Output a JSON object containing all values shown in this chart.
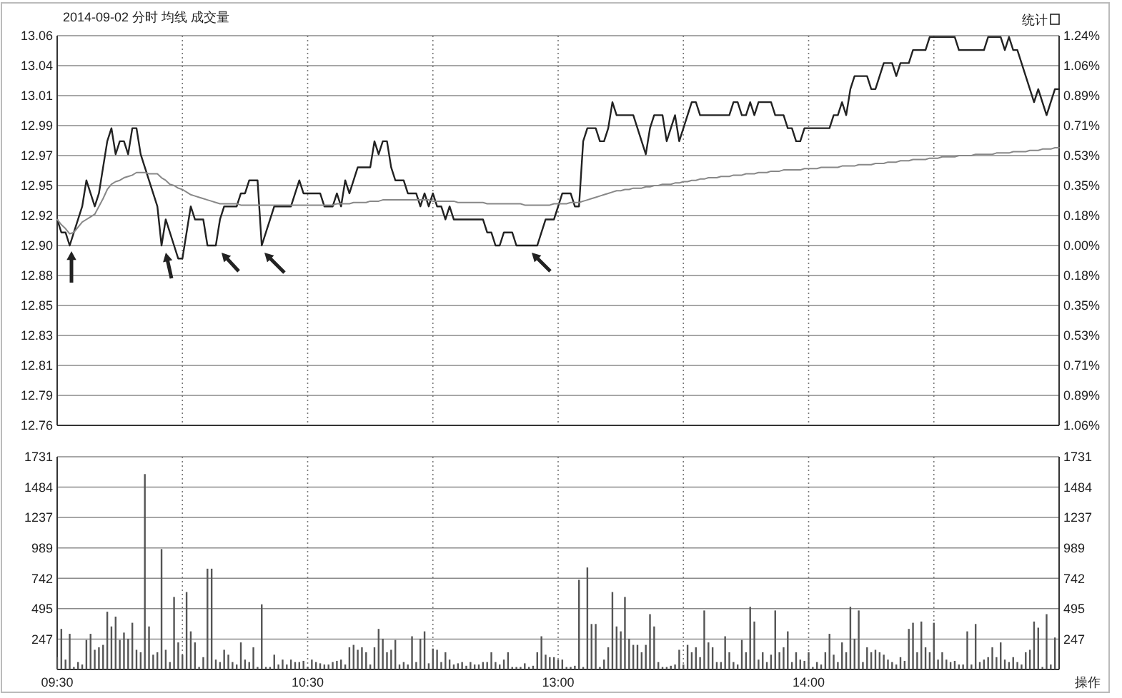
{
  "chart_data": [
    {
      "type": "line",
      "title": "2014-09-02 分时 均线 成交量",
      "annotations": [
        "统计"
      ],
      "categories": [
        null,
        null,
        null,
        null,
        null,
        null,
        null,
        null,
        null,
        null,
        null,
        null,
        null,
        null,
        null,
        null,
        null,
        null,
        null,
        null,
        null,
        null,
        null,
        null,
        null,
        null,
        null,
        null,
        null,
        null,
        null,
        null,
        null,
        null,
        null,
        null,
        null,
        null,
        null,
        null,
        null,
        null,
        null,
        null,
        null,
        null,
        null,
        null,
        null,
        null,
        null,
        null,
        null,
        null,
        null,
        null,
        null,
        null,
        null,
        null,
        null,
        null,
        null,
        null,
        null,
        null,
        null,
        null,
        null,
        null,
        null,
        null,
        null,
        null,
        null,
        null,
        null,
        null,
        null,
        null,
        null,
        null,
        null,
        null,
        null,
        null,
        null,
        null,
        null,
        null,
        null,
        null,
        null,
        null,
        null,
        null,
        null,
        null,
        null,
        null,
        null,
        null,
        null,
        null,
        null,
        null,
        null,
        null,
        null,
        null,
        null,
        null,
        null,
        null,
        null,
        null,
        null,
        null,
        null,
        null,
        null,
        null,
        null,
        null,
        null,
        null,
        null,
        null,
        null,
        null,
        null,
        null,
        null,
        null,
        null,
        null,
        null,
        null,
        null,
        null,
        null,
        null,
        null,
        null,
        null,
        null,
        null,
        null,
        null,
        null,
        null,
        null,
        null,
        null,
        null,
        null,
        null,
        null,
        null,
        null,
        null,
        null,
        null,
        null,
        null,
        null,
        null,
        null,
        null,
        null,
        null,
        null,
        null,
        null,
        null,
        null,
        null,
        null,
        null,
        null,
        null,
        null,
        null,
        null,
        null,
        null,
        null,
        null,
        null,
        null,
        null,
        null,
        null,
        null,
        null,
        null,
        null,
        null,
        null,
        null,
        null,
        null,
        null,
        null,
        null,
        null,
        null,
        null,
        null,
        null,
        null,
        null,
        null,
        null,
        null,
        null,
        null,
        null,
        null,
        null,
        null,
        null,
        null,
        null,
        null,
        null,
        null,
        null,
        null,
        null,
        null,
        null,
        null,
        null,
        null,
        null,
        null,
        null,
        null,
        null,
        null
      ],
      "ylim": [
        12.762,
        13.061
      ],
      "yticks": [
        {
          "value": 13.061,
          "label": "13.06"
        },
        {
          "value": 13.038,
          "label": "13.04"
        },
        {
          "value": 13.015,
          "label": "13.01"
        },
        {
          "value": 12.992,
          "label": "12.99"
        },
        {
          "value": 12.969,
          "label": "12.97"
        },
        {
          "value": 12.946,
          "label": "12.95"
        },
        {
          "value": 12.923,
          "label": "12.92"
        },
        {
          "value": 12.9,
          "label": "12.90"
        },
        {
          "value": 12.877,
          "label": "12.88"
        },
        {
          "value": 12.854,
          "label": "12.85"
        },
        {
          "value": 12.831,
          "label": "12.83"
        },
        {
          "value": 12.808,
          "label": "12.81"
        },
        {
          "value": 12.785,
          "label": "12.79"
        },
        {
          "value": 12.762,
          "label": "12.76"
        }
      ],
      "y2lim": [
        -1.062,
        1.239
      ],
      "y2ticks": [
        {
          "value": 1.239,
          "label": "1.24%"
        },
        {
          "value": 1.062,
          "label": "1.06%"
        },
        {
          "value": 0.885,
          "label": "0.89%"
        },
        {
          "value": 0.708,
          "label": "0.71%"
        },
        {
          "value": 0.531,
          "label": "0.53%"
        },
        {
          "value": 0.354,
          "label": "0.35%"
        },
        {
          "value": 0.177,
          "label": "0.18%"
        },
        {
          "value": 0,
          "label": "0.00%"
        },
        {
          "value": -0.177,
          "label": "0.18%"
        },
        {
          "value": -0.354,
          "label": "0.35%"
        },
        {
          "value": -0.531,
          "label": "0.53%"
        },
        {
          "value": -0.708,
          "label": "0.71%"
        },
        {
          "value": -0.885,
          "label": "0.89%"
        },
        {
          "value": -1.062,
          "label": "1.06%"
        }
      ],
      "grid": true,
      "series": [
        {
          "color": "#222222",
          "values": [
            12.92,
            12.91,
            12.91,
            12.9,
            12.91,
            12.92,
            12.93,
            12.95,
            12.94,
            12.93,
            12.94,
            12.96,
            12.98,
            12.99,
            12.97,
            12.98,
            12.98,
            12.97,
            12.99,
            12.99,
            12.97,
            12.96,
            12.95,
            12.94,
            12.93,
            12.9,
            12.92,
            12.91,
            12.9,
            12.89,
            12.89,
            12.91,
            12.93,
            12.92,
            12.92,
            12.92,
            12.9,
            12.9,
            12.9,
            12.92,
            12.93,
            12.93,
            12.93,
            12.93,
            12.94,
            12.94,
            12.95,
            12.95,
            12.95,
            12.9,
            12.91,
            12.92,
            12.93,
            12.93,
            12.93,
            12.93,
            12.93,
            12.94,
            12.95,
            12.94,
            12.94,
            12.94,
            12.94,
            12.94,
            12.93,
            12.93,
            12.93,
            12.94,
            12.93,
            12.95,
            12.94,
            12.95,
            12.96,
            12.96,
            12.96,
            12.96,
            12.98,
            12.97,
            12.98,
            12.98,
            12.96,
            12.95,
            12.95,
            12.95,
            12.94,
            12.94,
            12.94,
            12.93,
            12.94,
            12.93,
            12.94,
            12.93,
            12.93,
            12.92,
            12.93,
            12.92,
            12.92,
            12.92,
            12.92,
            12.92,
            12.92,
            12.92,
            12.92,
            12.91,
            12.91,
            12.9,
            12.9,
            12.91,
            12.91,
            12.91,
            12.9,
            12.9,
            12.9,
            12.9,
            12.9,
            12.9,
            12.91,
            12.92,
            12.92,
            12.92,
            12.93,
            12.94,
            12.94,
            12.94,
            12.93,
            12.93,
            12.98,
            12.99,
            12.99,
            12.99,
            12.98,
            12.98,
            12.99,
            13.01,
            13.0,
            13.0,
            13.0,
            13.0,
            13.0,
            12.99,
            12.98,
            12.97,
            12.99,
            13.0,
            13.0,
            13.0,
            12.98,
            12.99,
            13.0,
            12.98,
            12.99,
            13.0,
            13.01,
            13.01,
            13.0,
            13.0,
            13.0,
            13.0,
            13.0,
            13.0,
            13.0,
            13.0,
            13.01,
            13.01,
            13.0,
            13.0,
            13.01,
            13.0,
            13.01,
            13.01,
            13.01,
            13.01,
            13.0,
            13.0,
            13.0,
            12.99,
            12.99,
            12.98,
            12.98,
            12.99,
            12.99,
            12.99,
            12.99,
            12.99,
            12.99,
            12.99,
            13.0,
            13.0,
            13.01,
            13.0,
            13.02,
            13.03,
            13.03,
            13.03,
            13.03,
            13.02,
            13.02,
            13.03,
            13.04,
            13.04,
            13.04,
            13.03,
            13.04,
            13.04,
            13.04,
            13.05,
            13.05,
            13.05,
            13.05,
            13.06,
            13.06,
            13.06,
            13.06,
            13.06,
            13.06,
            13.06,
            13.05,
            13.05,
            13.05,
            13.05,
            13.05,
            13.05,
            13.05,
            13.06,
            13.06,
            13.06,
            13.06,
            13.05,
            13.06,
            13.05,
            13.05,
            13.04,
            13.03,
            13.02,
            13.01,
            13.02,
            13.01,
            13.0,
            13.01,
            13.02,
            13.02
          ]
        },
        {
          "color": "#888888",
          "values": [
            12.92,
            12.916,
            12.913,
            12.909,
            12.91,
            12.914,
            12.918,
            12.92,
            12.922,
            12.924,
            12.93,
            12.936,
            12.943,
            12.947,
            12.949,
            12.95,
            12.952,
            12.953,
            12.954,
            12.956,
            12.956,
            12.956,
            12.955,
            12.955,
            12.955,
            12.952,
            12.95,
            12.947,
            12.946,
            12.944,
            12.943,
            12.941,
            12.939,
            12.938,
            12.937,
            12.936,
            12.935,
            12.934,
            12.933,
            12.932,
            12.932,
            12.932,
            12.932,
            12.932,
            12.931,
            12.931,
            12.931,
            12.931,
            12.931,
            12.931,
            12.931,
            12.931,
            12.931,
            12.931,
            12.931,
            12.931,
            12.931,
            12.931,
            12.931,
            12.931,
            12.931,
            12.931,
            12.931,
            12.931,
            12.931,
            12.931,
            12.931,
            12.932,
            12.932,
            12.932,
            12.932,
            12.933,
            12.933,
            12.933,
            12.933,
            12.934,
            12.934,
            12.934,
            12.935,
            12.935,
            12.935,
            12.935,
            12.935,
            12.935,
            12.935,
            12.935,
            12.935,
            12.935,
            12.935,
            12.935,
            12.934,
            12.934,
            12.934,
            12.934,
            12.934,
            12.934,
            12.933,
            12.933,
            12.933,
            12.933,
            12.933,
            12.933,
            12.933,
            12.932,
            12.932,
            12.932,
            12.932,
            12.932,
            12.932,
            12.932,
            12.932,
            12.932,
            12.931,
            12.931,
            12.931,
            12.931,
            12.931,
            12.931,
            12.931,
            12.932,
            12.932,
            12.932,
            12.932,
            12.933,
            12.933,
            12.933,
            12.934,
            12.935,
            12.936,
            12.937,
            12.938,
            12.939,
            12.94,
            12.941,
            12.942,
            12.942,
            12.943,
            12.943,
            12.944,
            12.944,
            12.944,
            12.945,
            12.945,
            12.946,
            12.946,
            12.947,
            12.947,
            12.947,
            12.948,
            12.948,
            12.949,
            12.949,
            12.95,
            12.95,
            12.951,
            12.951,
            12.952,
            12.952,
            12.952,
            12.953,
            12.953,
            12.953,
            12.954,
            12.954,
            12.954,
            12.955,
            12.955,
            12.955,
            12.956,
            12.956,
            12.956,
            12.957,
            12.957,
            12.957,
            12.958,
            12.958,
            12.958,
            12.958,
            12.958,
            12.959,
            12.959,
            12.959,
            12.959,
            12.96,
            12.96,
            12.96,
            12.96,
            12.96,
            12.961,
            12.961,
            12.961,
            12.961,
            12.962,
            12.962,
            12.962,
            12.962,
            12.963,
            12.963,
            12.963,
            12.964,
            12.964,
            12.964,
            12.965,
            12.965,
            12.965,
            12.966,
            12.966,
            12.966,
            12.966,
            12.967,
            12.967,
            12.967,
            12.968,
            12.968,
            12.968,
            12.968,
            12.969,
            12.969,
            12.969,
            12.969,
            12.97,
            12.97,
            12.97,
            12.97,
            12.97,
            12.971,
            12.971,
            12.971,
            12.971,
            12.972,
            12.972,
            12.972,
            12.972,
            12.973,
            12.973,
            12.973,
            12.974,
            12.974,
            12.974,
            12.975,
            12.975
          ]
        }
      ]
    },
    {
      "type": "bar",
      "annotations": [
        "操作"
      ],
      "color": "#555555",
      "categories": [
        "09:30",
        null,
        null,
        null,
        null,
        null,
        null,
        null,
        null,
        null,
        null,
        null,
        null,
        null,
        null,
        null,
        null,
        null,
        null,
        null,
        null,
        null,
        null,
        null,
        null,
        null,
        null,
        null,
        null,
        null,
        null,
        null,
        null,
        null,
        null,
        null,
        null,
        null,
        null,
        null,
        null,
        null,
        null,
        null,
        null,
        null,
        null,
        null,
        null,
        null,
        null,
        null,
        null,
        null,
        null,
        null,
        null,
        null,
        null,
        null,
        "10:30",
        null,
        null,
        null,
        null,
        null,
        null,
        null,
        null,
        null,
        null,
        null,
        null,
        null,
        null,
        null,
        null,
        null,
        null,
        null,
        null,
        null,
        null,
        null,
        null,
        null,
        null,
        null,
        null,
        null,
        null,
        null,
        null,
        null,
        null,
        null,
        null,
        null,
        null,
        null,
        null,
        null,
        null,
        null,
        null,
        null,
        null,
        null,
        null,
        null,
        null,
        null,
        null,
        null,
        null,
        null,
        null,
        null,
        null,
        null,
        "13:00",
        null,
        null,
        null,
        null,
        null,
        null,
        null,
        null,
        null,
        null,
        null,
        null,
        null,
        null,
        null,
        null,
        null,
        null,
        null,
        null,
        null,
        null,
        null,
        null,
        null,
        null,
        null,
        null,
        null,
        null,
        null,
        null,
        null,
        null,
        null,
        null,
        null,
        null,
        null,
        null,
        null,
        null,
        null,
        null,
        null,
        null,
        null,
        null,
        null,
        null,
        null,
        null,
        null,
        null,
        null,
        null,
        null,
        null,
        null,
        "14:00",
        null,
        null,
        null,
        null,
        null,
        null,
        null,
        null,
        null,
        null,
        null,
        null,
        null,
        null,
        null,
        null,
        null,
        null,
        null,
        null,
        null,
        null,
        null,
        null,
        null,
        null,
        null,
        null,
        null,
        null,
        null,
        null,
        null,
        null,
        null,
        null,
        null,
        null,
        null,
        null,
        null,
        null,
        null,
        null,
        null,
        null,
        null,
        null,
        null,
        null,
        null,
        null,
        null,
        null,
        null,
        null,
        null,
        null,
        null
      ],
      "ylim": [
        0,
        1731
      ],
      "yticks": [
        247,
        495,
        742,
        989,
        1237,
        1484,
        1731
      ],
      "y2lim": [
        0,
        1731
      ],
      "y2ticks": [
        247,
        495,
        742,
        989,
        1237,
        1484,
        1731
      ],
      "grid": true,
      "values": [
        100,
        330,
        80,
        290,
        20,
        60,
        40,
        240,
        290,
        160,
        180,
        200,
        470,
        350,
        430,
        240,
        300,
        250,
        380,
        160,
        140,
        1590,
        350,
        120,
        140,
        980,
        160,
        60,
        590,
        220,
        120,
        630,
        310,
        220,
        20,
        100,
        820,
        820,
        80,
        60,
        160,
        120,
        60,
        40,
        220,
        80,
        60,
        180,
        20,
        530,
        20,
        20,
        120,
        40,
        80,
        40,
        80,
        60,
        60,
        70,
        20,
        80,
        60,
        50,
        40,
        40,
        60,
        70,
        80,
        40,
        180,
        200,
        160,
        180,
        140,
        40,
        180,
        330,
        250,
        140,
        160,
        240,
        40,
        60,
        40,
        270,
        60,
        250,
        310,
        50,
        170,
        160,
        60,
        140,
        80,
        40,
        50,
        60,
        30,
        60,
        40,
        40,
        60,
        60,
        140,
        60,
        40,
        80,
        140,
        20,
        20,
        20,
        50,
        20,
        30,
        140,
        270,
        120,
        100,
        100,
        80,
        80,
        20,
        20,
        30,
        730,
        20,
        830,
        370,
        370,
        20,
        80,
        180,
        630,
        350,
        310,
        590,
        250,
        200,
        200,
        140,
        200,
        450,
        350,
        60,
        20,
        20,
        30,
        40,
        160,
        40,
        200,
        140,
        180,
        100,
        480,
        220,
        180,
        60,
        60,
        270,
        140,
        60,
        40,
        240,
        140,
        510,
        390,
        80,
        140,
        60,
        120,
        480,
        140,
        180,
        310,
        60,
        140,
        80,
        70,
        140,
        20,
        60,
        40,
        140,
        290,
        120,
        60,
        220,
        140,
        510,
        250,
        480,
        60,
        180,
        140,
        160,
        140,
        120,
        80,
        60,
        40,
        100,
        70,
        330,
        380,
        140,
        390,
        180,
        140,
        380,
        80,
        140,
        80,
        60,
        70,
        40,
        40,
        310,
        40,
        370,
        60,
        80,
        100,
        180,
        100,
        220,
        80,
        60,
        100,
        60,
        40,
        140,
        160,
        390,
        340,
        20,
        450,
        40,
        260
      ]
    }
  ]
}
